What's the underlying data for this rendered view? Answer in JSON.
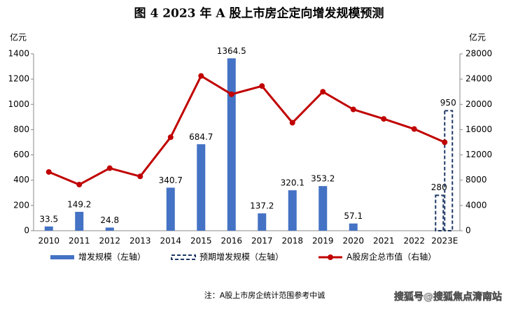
{
  "chart_data": {
    "type": "bar-line",
    "title": "图 4   2023 年 A 股上市房企定向增发规模预测",
    "y_label": "亿元",
    "y2_label": "亿元",
    "categories": [
      "2010",
      "2011",
      "2012",
      "2013",
      "2014",
      "2015",
      "2016",
      "2017",
      "2018",
      "2019",
      "2020",
      "2021",
      "2022",
      "2023E"
    ],
    "ylim": [
      0,
      1400
    ],
    "yticks": [
      0,
      200,
      400,
      600,
      800,
      1000,
      1200,
      1400
    ],
    "y2lim": [
      0,
      28000
    ],
    "y2ticks": [
      0,
      4000,
      8000,
      12000,
      16000,
      20000,
      24000,
      28000
    ],
    "series": [
      {
        "name": "增发规模（左轴）",
        "style": "bar",
        "color": "#4472c4",
        "values": [
          33.5,
          149.2,
          24.8,
          null,
          340.7,
          684.7,
          1364.5,
          137.2,
          320.1,
          353.2,
          57.1,
          null,
          null,
          null
        ]
      },
      {
        "name": "预期增发规模（左轴）",
        "style": "dashed-bar",
        "color": "#1f3864",
        "values": [
          null,
          null,
          null,
          null,
          null,
          null,
          null,
          null,
          null,
          null,
          null,
          null,
          null,
          [
            280,
            950
          ]
        ]
      },
      {
        "name": "A股房企总市值（右轴）",
        "style": "line",
        "color": "#c00000",
        "axis": "y2",
        "values": [
          9300,
          7300,
          9900,
          8600,
          14800,
          24500,
          21600,
          22900,
          17100,
          22000,
          19200,
          17700,
          16100,
          14000
        ]
      }
    ],
    "note": "注：A股上市房企统计范围参考中诚",
    "watermark": "搜狐号@搜狐焦点清南站"
  }
}
